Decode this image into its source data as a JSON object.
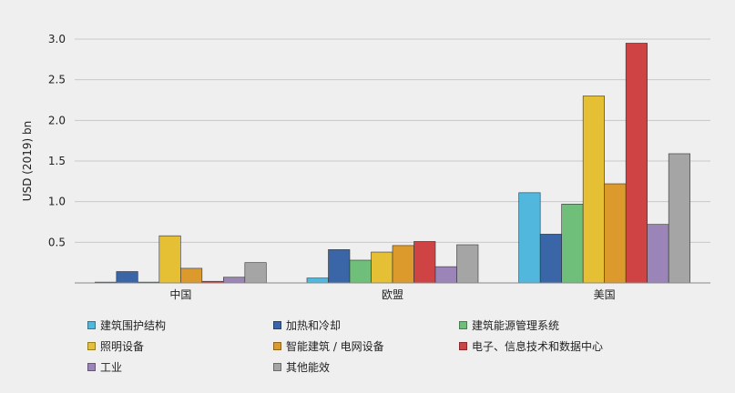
{
  "chart_data": {
    "type": "bar",
    "ylabel": "USD (2019) bn",
    "ylim": [
      0,
      3.0
    ],
    "yticks": [
      "3.0",
      "2.5",
      "2.0",
      "1.5",
      "1.0",
      "0.5"
    ],
    "categories": [
      "中国",
      "欧盟",
      "美国"
    ],
    "grid": true,
    "legend_position": "bottom",
    "series": [
      {
        "name": "建筑围护结构",
        "color": "#52b7dc",
        "values": [
          0.01,
          0.06,
          1.11
        ]
      },
      {
        "name": "加热和冷却",
        "color": "#3a66a8",
        "values": [
          0.14,
          0.41,
          0.6
        ]
      },
      {
        "name": "建筑能源管理系统",
        "color": "#6fbf7b",
        "values": [
          0.01,
          0.28,
          0.97
        ]
      },
      {
        "name": "照明设备",
        "color": "#e6c034",
        "values": [
          0.58,
          0.38,
          2.3
        ]
      },
      {
        "name": "智能建筑 / 电网设备",
        "color": "#dc9a2c",
        "values": [
          0.18,
          0.46,
          1.22
        ]
      },
      {
        "name": "电子、信息技术和数据中心",
        "color": "#cf4345",
        "values": [
          0.02,
          0.51,
          2.95
        ]
      },
      {
        "name": "工业",
        "color": "#9a84b8",
        "values": [
          0.07,
          0.2,
          0.72
        ]
      },
      {
        "name": "其他能效",
        "color": "#a5a5a5",
        "values": [
          0.25,
          0.47,
          1.59
        ]
      }
    ]
  }
}
